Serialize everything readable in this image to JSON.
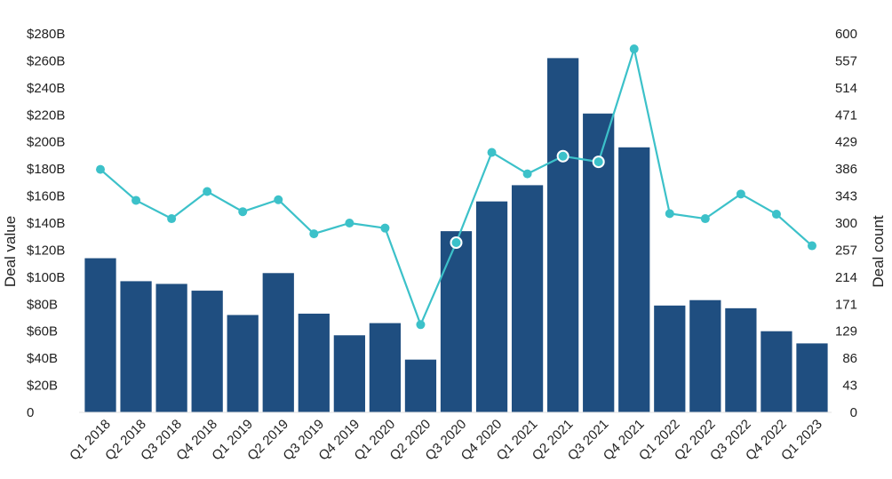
{
  "chart_data": {
    "type": "bar",
    "title": "",
    "categories": [
      "Q1 2018",
      "Q2 2018",
      "Q3 2018",
      "Q4 2018",
      "Q1 2019",
      "Q2 2019",
      "Q3 2019",
      "Q4 2019",
      "Q1 2020",
      "Q2 2020",
      "Q3 2020",
      "Q4 2020",
      "Q1 2021",
      "Q2 2021",
      "Q3 2021",
      "Q4 2021",
      "Q1 2022",
      "Q2 2022",
      "Q3 2022",
      "Q4 2022",
      "Q1 2023"
    ],
    "series": [
      {
        "type": "bar",
        "axis": "left",
        "color": "#1f4e80",
        "values": [
          114,
          97,
          95,
          90,
          72,
          103,
          73,
          57,
          66,
          39,
          134,
          156,
          168,
          262,
          221,
          196,
          79,
          83,
          77,
          60,
          51
        ]
      },
      {
        "type": "line",
        "axis": "right",
        "color": "#3cc1c9",
        "values": [
          385,
          336,
          307,
          350,
          318,
          337,
          283,
          300,
          292,
          139,
          269,
          412,
          378,
          406,
          397,
          576,
          315,
          307,
          346,
          314,
          264
        ],
        "hollow_points": [
          10,
          13,
          14
        ]
      }
    ],
    "y_left": {
      "label": "Deal value",
      "ylim": [
        0,
        280
      ],
      "ticks": [
        "0",
        "$20B",
        "$40B",
        "$60B",
        "$80B",
        "$100B",
        "$120B",
        "$140B",
        "$160B",
        "$180B",
        "$200B",
        "$220B",
        "$240B",
        "$260B",
        "$280B"
      ]
    },
    "y_right": {
      "label": "Deal count",
      "ylim": [
        0,
        600
      ],
      "ticks": [
        "0",
        "43",
        "86",
        "129",
        "171",
        "214",
        "257",
        "300",
        "343",
        "386",
        "429",
        "471",
        "514",
        "557",
        "600"
      ]
    },
    "grid": false,
    "legend": "none"
  }
}
